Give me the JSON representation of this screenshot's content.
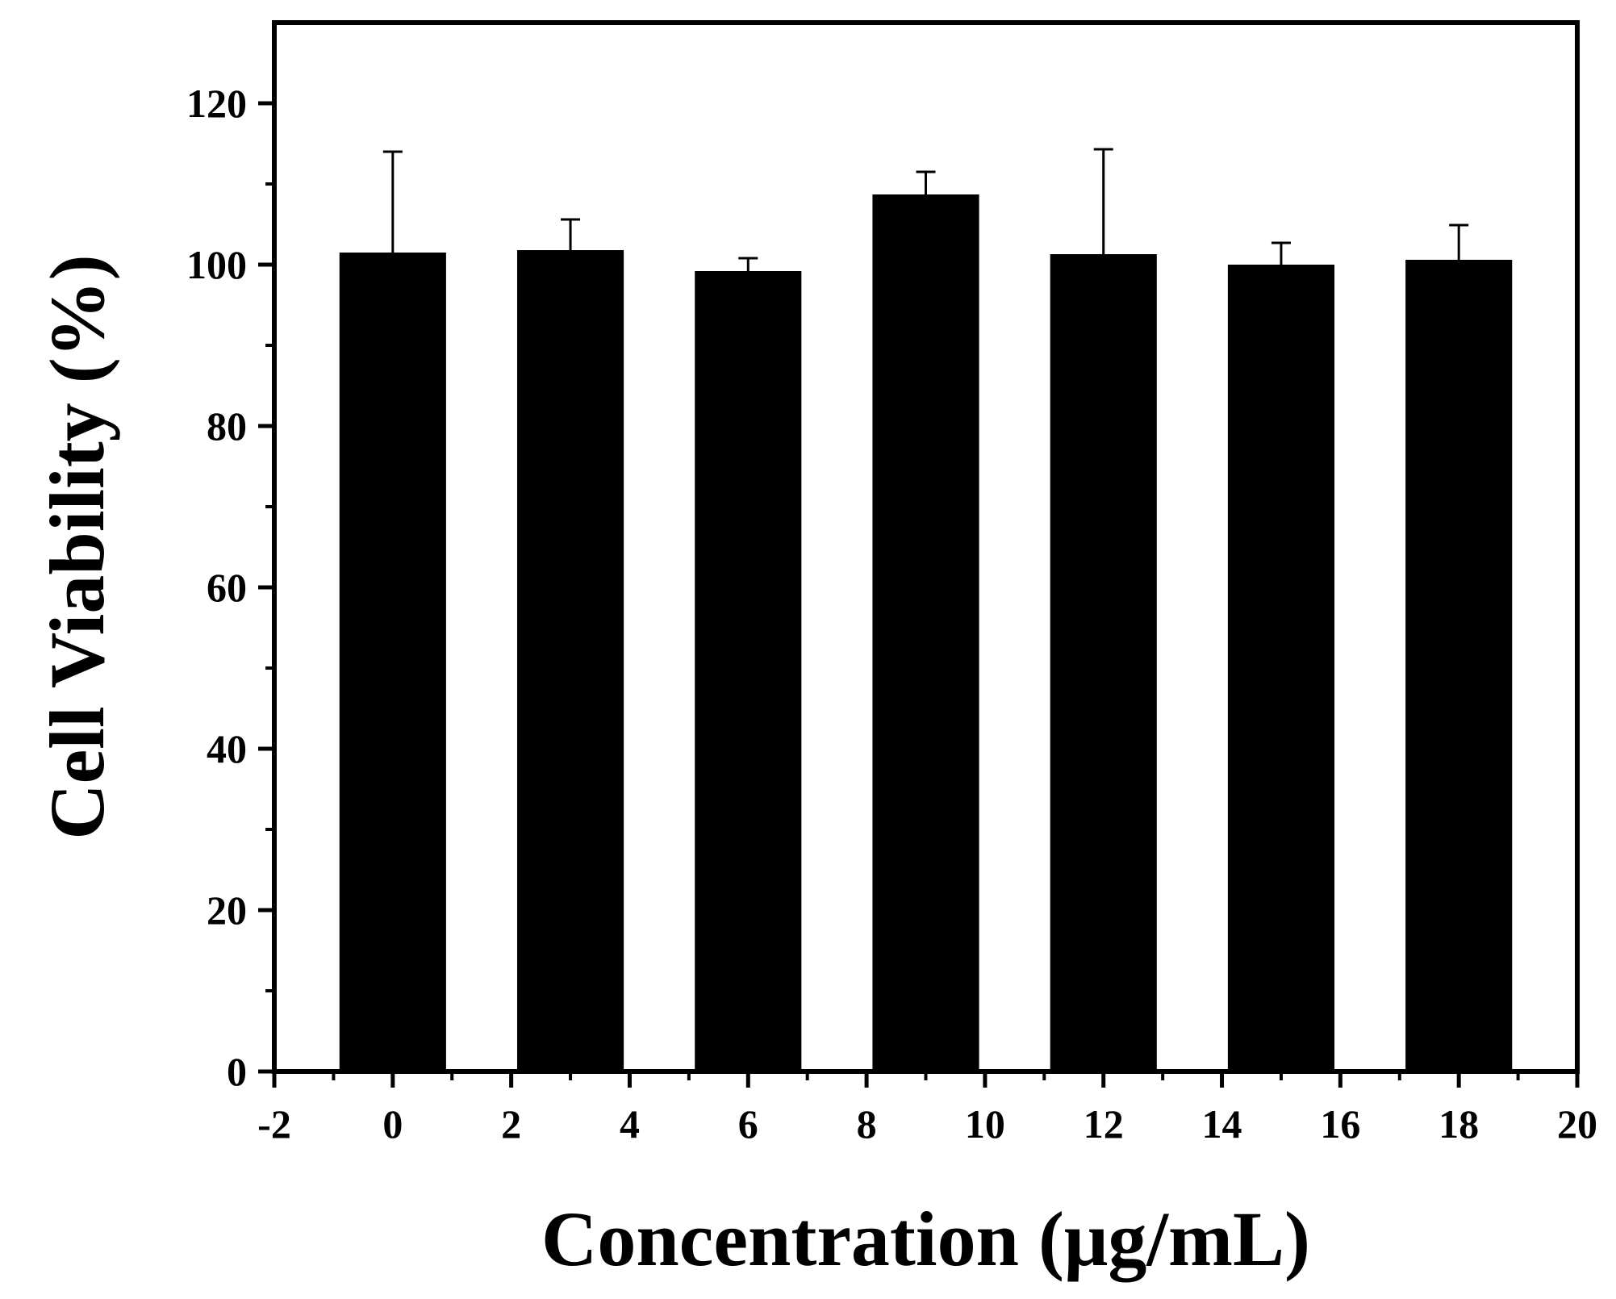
{
  "chart_data": {
    "type": "bar",
    "title": "",
    "xlabel": "Concentration (μg/mL)",
    "ylabel": "Cell Viability (%)",
    "x": [
      0,
      3,
      6,
      9,
      12,
      15,
      18
    ],
    "values": [
      101.5,
      101.8,
      99.2,
      108.7,
      101.3,
      100.0,
      100.6
    ],
    "errors": [
      12.5,
      3.8,
      1.6,
      2.8,
      13.0,
      2.7,
      4.3
    ],
    "bar_width": 1.8,
    "xlim": [
      -2,
      20
    ],
    "ylim": [
      0,
      130
    ],
    "xticks": [
      -2,
      0,
      2,
      4,
      6,
      8,
      10,
      12,
      14,
      16,
      18,
      20
    ],
    "yticks": [
      0,
      20,
      40,
      60,
      80,
      100,
      120
    ],
    "grid": false,
    "colors": {
      "bar": "#000000",
      "axis": "#000000",
      "background": "#ffffff"
    }
  }
}
